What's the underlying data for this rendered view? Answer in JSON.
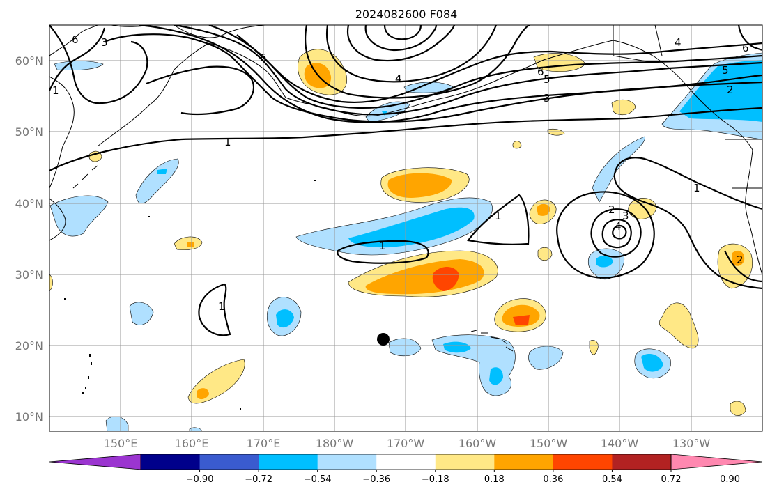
{
  "title": "2024082600 F084",
  "lat_labels": [
    "60°N",
    "50°N",
    "40°N",
    "30°N",
    "20°N",
    "10°N"
  ],
  "lon_labels": [
    "150°E",
    "160°E",
    "170°E",
    "180°W",
    "170°W",
    "160°W",
    "150°W",
    "140°W",
    "130°W"
  ],
  "colorbar": {
    "colors": [
      "#9b35d0",
      "#00008b",
      "#3a5bcf",
      "#00bfff",
      "#b0e0ff",
      "#ffffff",
      "#ffe886",
      "#ffa500",
      "#ff4500",
      "#b22222",
      "#ff88b0"
    ],
    "tick_labels": [
      "−0.90",
      "−0.72",
      "−0.54",
      "−0.36",
      "−0.18",
      "0.18",
      "0.36",
      "0.54",
      "0.72",
      "0.90"
    ]
  },
  "contour_labels": [
    "1",
    "1",
    "1",
    "1",
    "1",
    "1",
    "2",
    "2",
    "3",
    "3",
    "3",
    "4",
    "4",
    "4",
    "5",
    "5",
    "6",
    "6",
    "6",
    "6",
    "2"
  ],
  "map": {
    "lon_range": [
      "140°E",
      "121°W"
    ],
    "lat_range": [
      "8°N",
      "65°N"
    ],
    "marker": {
      "label": "black dot",
      "lon": "173°W",
      "lat": "21°N"
    }
  }
}
